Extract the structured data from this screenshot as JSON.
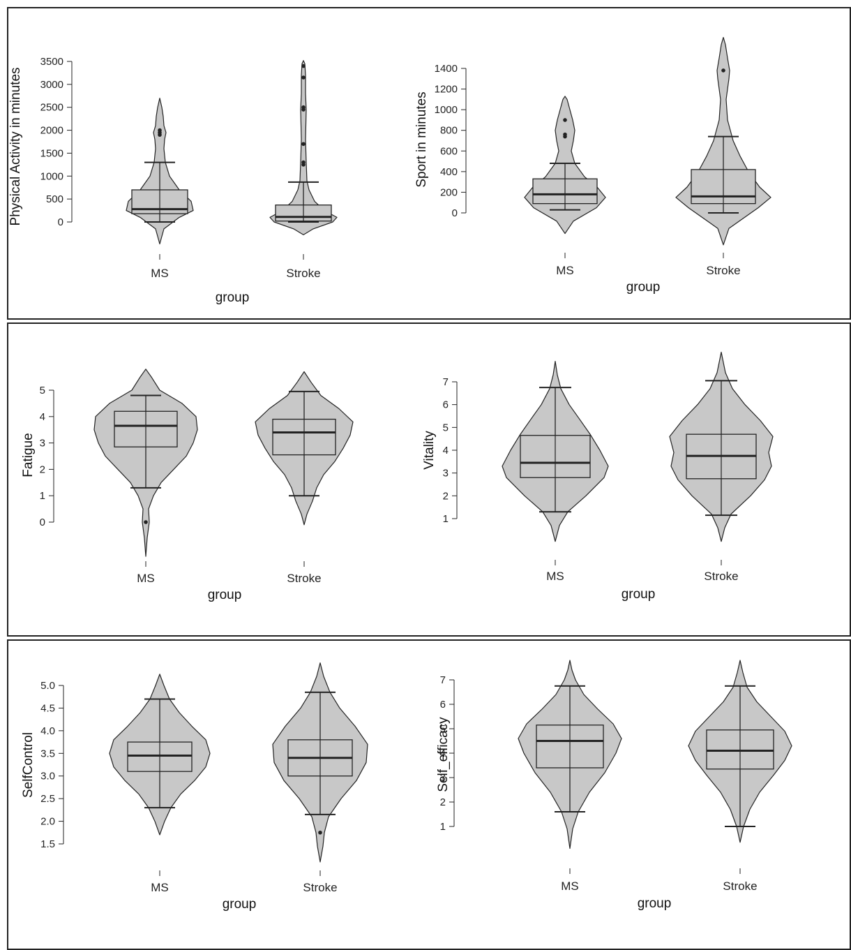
{
  "colors": {
    "violin_fill": "#c8c8c8",
    "stroke": "#222222",
    "frame": "#222222",
    "background": "#ffffff"
  },
  "chart_data": [
    {
      "type": "violin",
      "ylabel": "Physical Activity in minutes",
      "xlabel": "group",
      "ylim": [
        0,
        3500
      ],
      "yticks": [
        0,
        500,
        1000,
        1500,
        2000,
        2500,
        3000,
        3500
      ],
      "categories": [
        "MS",
        "Stroke"
      ],
      "groups": [
        {
          "name": "MS",
          "whisker_low": 0,
          "q1": 180,
          "median": 280,
          "q3": 700,
          "whisker_high": 1300,
          "outliers": [
            1900,
            1950,
            2000
          ],
          "density": [
            [
              -480,
              0
            ],
            [
              -150,
              6
            ],
            [
              100,
              28
            ],
            [
              250,
              48
            ],
            [
              450,
              45
            ],
            [
              700,
              28
            ],
            [
              1000,
              14
            ],
            [
              1300,
              8
            ],
            [
              1600,
              6
            ],
            [
              1800,
              7
            ],
            [
              1950,
              9
            ],
            [
              2100,
              6
            ],
            [
              2300,
              5
            ],
            [
              2500,
              3
            ],
            [
              2700,
              0
            ]
          ]
        },
        {
          "name": "Stroke",
          "whisker_low": 0,
          "q1": 20,
          "median": 110,
          "q3": 370,
          "whisker_high": 870,
          "outliers": [
            1250,
            1300,
            1700,
            2450,
            2500,
            3150,
            3400
          ],
          "density": [
            [
              -280,
              0
            ],
            [
              -150,
              14
            ],
            [
              0,
              42
            ],
            [
              100,
              48
            ],
            [
              250,
              30
            ],
            [
              450,
              16
            ],
            [
              700,
              8
            ],
            [
              900,
              5
            ],
            [
              1300,
              4
            ],
            [
              1800,
              3
            ],
            [
              2450,
              4
            ],
            [
              2800,
              3
            ],
            [
              3200,
              3
            ],
            [
              3450,
              2
            ],
            [
              3520,
              0
            ]
          ]
        }
      ]
    },
    {
      "type": "violin",
      "ylabel": "Sport in minutes",
      "xlabel": "group",
      "ylim": [
        0,
        1400
      ],
      "yticks": [
        0,
        200,
        400,
        600,
        800,
        1000,
        1200,
        1400
      ],
      "categories": [
        "MS",
        "Stroke"
      ],
      "groups": [
        {
          "name": "MS",
          "whisker_low": 30,
          "q1": 90,
          "median": 180,
          "q3": 330,
          "whisker_high": 480,
          "outliers": [
            740,
            760,
            900
          ],
          "density": [
            [
              -200,
              0
            ],
            [
              -80,
              12
            ],
            [
              50,
              45
            ],
            [
              150,
              58
            ],
            [
              250,
              46
            ],
            [
              350,
              28
            ],
            [
              480,
              14
            ],
            [
              600,
              9
            ],
            [
              700,
              12
            ],
            [
              800,
              14
            ],
            [
              900,
              11
            ],
            [
              1000,
              7
            ],
            [
              1100,
              3
            ],
            [
              1130,
              0
            ]
          ]
        },
        {
          "name": "Stroke",
          "whisker_low": 0,
          "q1": 90,
          "median": 160,
          "q3": 420,
          "whisker_high": 740,
          "outliers": [
            1380
          ],
          "density": [
            [
              -310,
              0
            ],
            [
              -150,
              8
            ],
            [
              50,
              50
            ],
            [
              150,
              68
            ],
            [
              250,
              52
            ],
            [
              400,
              36
            ],
            [
              550,
              24
            ],
            [
              700,
              14
            ],
            [
              900,
              6
            ],
            [
              1100,
              4
            ],
            [
              1300,
              8
            ],
            [
              1380,
              9
            ],
            [
              1500,
              6
            ],
            [
              1630,
              3
            ],
            [
              1700,
              0
            ]
          ]
        }
      ]
    },
    {
      "type": "violin",
      "ylabel": "Fatigue",
      "xlabel": "group",
      "ylim": [
        0,
        5
      ],
      "yticks": [
        0,
        1,
        2,
        3,
        4,
        5
      ],
      "categories": [
        "MS",
        "Stroke"
      ],
      "groups": [
        {
          "name": "MS",
          "whisker_low": 1.3,
          "q1": 2.85,
          "median": 3.65,
          "q3": 4.2,
          "whisker_high": 4.8,
          "outliers": [
            0
          ],
          "density": [
            [
              -1.3,
              0
            ],
            [
              -0.6,
              2
            ],
            [
              0,
              5
            ],
            [
              0.5,
              4
            ],
            [
              1.0,
              11
            ],
            [
              1.5,
              22
            ],
            [
              2.0,
              40
            ],
            [
              2.5,
              58
            ],
            [
              3.0,
              68
            ],
            [
              3.5,
              74
            ],
            [
              4.0,
              72
            ],
            [
              4.5,
              52
            ],
            [
              5.0,
              20
            ],
            [
              5.5,
              8
            ],
            [
              5.8,
              0
            ]
          ]
        },
        {
          "name": "Stroke",
          "whisker_low": 1.0,
          "q1": 2.55,
          "median": 3.4,
          "q3": 3.9,
          "whisker_high": 4.95,
          "outliers": [],
          "density": [
            [
              -0.1,
              0
            ],
            [
              0.3,
              4
            ],
            [
              0.8,
              12
            ],
            [
              1.3,
              18
            ],
            [
              1.8,
              28
            ],
            [
              2.3,
              44
            ],
            [
              2.8,
              56
            ],
            [
              3.3,
              66
            ],
            [
              3.8,
              70
            ],
            [
              4.3,
              50
            ],
            [
              4.8,
              24
            ],
            [
              5.3,
              10
            ],
            [
              5.7,
              0
            ]
          ]
        }
      ]
    },
    {
      "type": "violin",
      "ylabel": "Vitality",
      "xlabel": "group",
      "ylim": [
        1,
        7
      ],
      "yticks": [
        1,
        2,
        3,
        4,
        5,
        6,
        7
      ],
      "categories": [
        "MS",
        "Stroke"
      ],
      "groups": [
        {
          "name": "MS",
          "whisker_low": 1.3,
          "q1": 2.8,
          "median": 3.45,
          "q3": 4.65,
          "whisker_high": 6.75,
          "outliers": [],
          "density": [
            [
              0.0,
              0
            ],
            [
              0.7,
              6
            ],
            [
              1.3,
              18
            ],
            [
              2.0,
              44
            ],
            [
              2.8,
              70
            ],
            [
              3.3,
              76
            ],
            [
              4.0,
              64
            ],
            [
              4.7,
              50
            ],
            [
              5.4,
              34
            ],
            [
              6.0,
              20
            ],
            [
              6.7,
              8
            ],
            [
              7.3,
              3
            ],
            [
              7.9,
              0
            ]
          ]
        },
        {
          "name": "Stroke",
          "whisker_low": 1.15,
          "q1": 2.75,
          "median": 3.75,
          "q3": 4.7,
          "whisker_high": 7.05,
          "outliers": [],
          "density": [
            [
              0.0,
              0
            ],
            [
              0.6,
              5
            ],
            [
              1.2,
              14
            ],
            [
              2.0,
              42
            ],
            [
              2.7,
              62
            ],
            [
              3.3,
              72
            ],
            [
              3.9,
              68
            ],
            [
              4.6,
              74
            ],
            [
              5.3,
              56
            ],
            [
              6.0,
              34
            ],
            [
              6.7,
              16
            ],
            [
              7.4,
              6
            ],
            [
              8.3,
              0
            ]
          ]
        }
      ]
    },
    {
      "type": "violin",
      "ylabel": "SelfControl",
      "xlabel": "group",
      "ylim": [
        1.5,
        5.0
      ],
      "yticks": [
        1.5,
        2.0,
        2.5,
        3.0,
        3.5,
        4.0,
        4.5,
        5.0
      ],
      "categories": [
        "MS",
        "Stroke"
      ],
      "groups": [
        {
          "name": "MS",
          "whisker_low": 2.3,
          "q1": 3.1,
          "median": 3.45,
          "q3": 3.75,
          "whisker_high": 4.7,
          "outliers": [],
          "density": [
            [
              1.7,
              0
            ],
            [
              2.0,
              7
            ],
            [
              2.3,
              16
            ],
            [
              2.6,
              30
            ],
            [
              2.9,
              50
            ],
            [
              3.2,
              66
            ],
            [
              3.5,
              72
            ],
            [
              3.8,
              66
            ],
            [
              4.1,
              46
            ],
            [
              4.4,
              28
            ],
            [
              4.7,
              14
            ],
            [
              5.0,
              6
            ],
            [
              5.25,
              0
            ]
          ]
        },
        {
          "name": "Stroke",
          "whisker_low": 2.15,
          "q1": 3.0,
          "median": 3.4,
          "q3": 3.8,
          "whisker_high": 4.85,
          "outliers": [
            1.75
          ],
          "density": [
            [
              1.1,
              0
            ],
            [
              1.45,
              4
            ],
            [
              1.75,
              6
            ],
            [
              2.1,
              12
            ],
            [
              2.5,
              30
            ],
            [
              2.9,
              52
            ],
            [
              3.3,
              66
            ],
            [
              3.7,
              68
            ],
            [
              4.1,
              50
            ],
            [
              4.5,
              28
            ],
            [
              4.85,
              14
            ],
            [
              5.2,
              5
            ],
            [
              5.5,
              0
            ]
          ]
        }
      ]
    },
    {
      "type": "violin",
      "ylabel": "Self_efficacy",
      "xlabel": "group",
      "ylim": [
        1,
        7
      ],
      "yticks": [
        1,
        2,
        3,
        4,
        5,
        6,
        7
      ],
      "categories": [
        "MS",
        "Stroke"
      ],
      "groups": [
        {
          "name": "MS",
          "whisker_low": 1.6,
          "q1": 3.4,
          "median": 4.5,
          "q3": 5.15,
          "whisker_high": 6.75,
          "outliers": [],
          "density": [
            [
              0.1,
              0
            ],
            [
              0.9,
              4
            ],
            [
              1.6,
              12
            ],
            [
              2.4,
              28
            ],
            [
              3.2,
              50
            ],
            [
              4.0,
              66
            ],
            [
              4.6,
              74
            ],
            [
              5.2,
              62
            ],
            [
              5.8,
              40
            ],
            [
              6.4,
              20
            ],
            [
              7.0,
              8
            ],
            [
              7.4,
              3
            ],
            [
              7.8,
              0
            ]
          ]
        },
        {
          "name": "Stroke",
          "whisker_low": 1.0,
          "q1": 3.35,
          "median": 4.1,
          "q3": 4.95,
          "whisker_high": 6.75,
          "outliers": [],
          "density": [
            [
              0.35,
              0
            ],
            [
              1.0,
              5
            ],
            [
              1.7,
              14
            ],
            [
              2.4,
              28
            ],
            [
              3.1,
              48
            ],
            [
              3.7,
              64
            ],
            [
              4.3,
              74
            ],
            [
              4.9,
              64
            ],
            [
              5.5,
              44
            ],
            [
              6.1,
              24
            ],
            [
              6.7,
              10
            ],
            [
              7.3,
              4
            ],
            [
              7.8,
              0
            ]
          ]
        }
      ]
    }
  ]
}
